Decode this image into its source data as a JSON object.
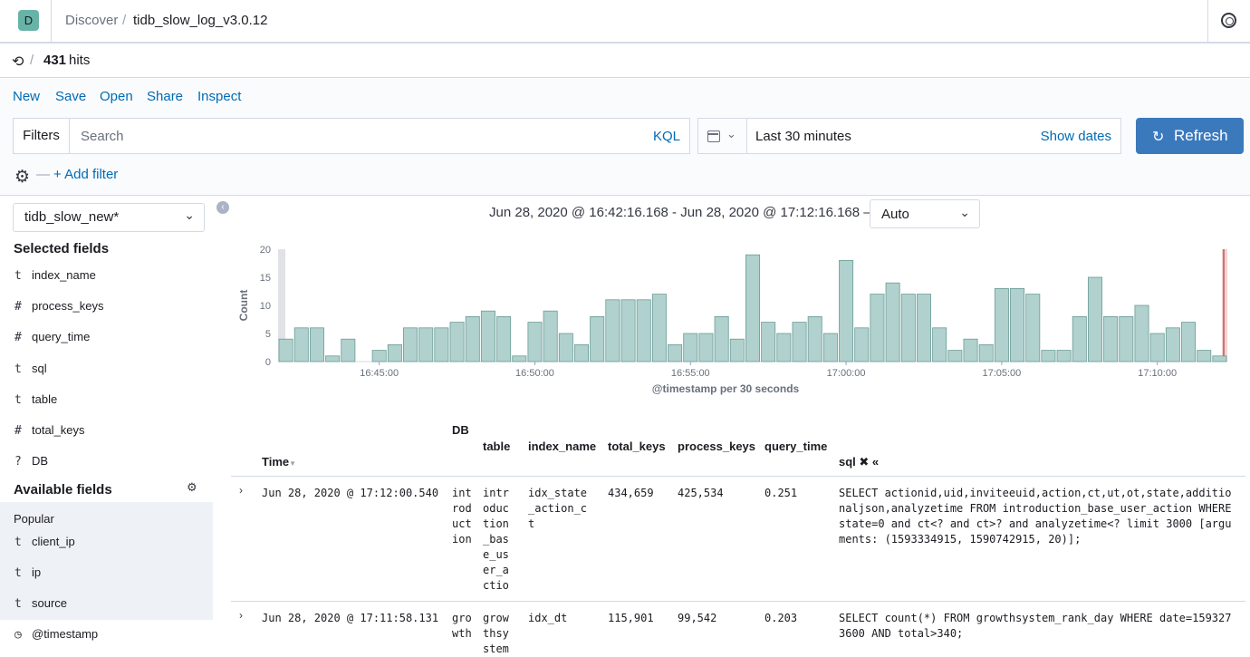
{
  "header": {
    "avatar_letter": "D",
    "breadcrumb_app": "Discover",
    "breadcrumb_sep": "/",
    "breadcrumb_index": "tidb_slow_log_v3.0.12"
  },
  "hits": {
    "sep": "/",
    "count": "431",
    "label": "hits"
  },
  "menu": {
    "new": "New",
    "save": "Save",
    "open": "Open",
    "share": "Share",
    "inspect": "Inspect"
  },
  "query": {
    "filters_label": "Filters",
    "search_placeholder": "Search",
    "kql_label": "KQL",
    "time_label": "Last 30 minutes",
    "show_dates": "Show dates",
    "refresh_label": "Refresh",
    "add_filter": "+ Add filter",
    "dash": "—"
  },
  "sidebar": {
    "index_pattern": "tidb_slow_new*",
    "selected_title": "Selected fields",
    "selected_fields": [
      {
        "type": "t",
        "name": "index_name"
      },
      {
        "type": "#",
        "name": "process_keys"
      },
      {
        "type": "#",
        "name": "query_time"
      },
      {
        "type": "t",
        "name": "sql"
      },
      {
        "type": "t",
        "name": "table"
      },
      {
        "type": "#",
        "name": "total_keys"
      },
      {
        "type": "?",
        "name": "DB"
      }
    ],
    "available_title": "Available fields",
    "popular_label": "Popular",
    "popular_fields": [
      {
        "type": "t",
        "name": "client_ip"
      },
      {
        "type": "t",
        "name": "ip"
      },
      {
        "type": "t",
        "name": "source"
      }
    ],
    "other_fields": [
      {
        "type": "◷",
        "name": "@timestamp"
      }
    ]
  },
  "histogram": {
    "range_label": "Jun 28, 2020 @ 16:42:16.168 - Jun 28, 2020 @ 17:12:16.168 —",
    "interval_value": "Auto"
  },
  "chart_data": {
    "type": "bar",
    "xlabel": "@timestamp per 30 seconds",
    "ylabel": "Count",
    "ylim": [
      0,
      20
    ],
    "yticks": [
      "0",
      "5",
      "10",
      "15",
      "20"
    ],
    "xticks": [
      "16:45:00",
      "16:50:00",
      "16:55:00",
      "17:00:00",
      "17:05:00",
      "17:10:00"
    ],
    "bar_color": "#b0d1cd",
    "values": [
      4,
      6,
      6,
      1,
      4,
      0,
      2,
      3,
      6,
      6,
      6,
      7,
      8,
      9,
      8,
      1,
      7,
      9,
      5,
      3,
      8,
      11,
      11,
      11,
      12,
      3,
      5,
      5,
      8,
      4,
      19,
      7,
      5,
      7,
      8,
      5,
      18,
      6,
      12,
      14,
      12,
      12,
      6,
      2,
      4,
      3,
      13,
      13,
      12,
      2,
      2,
      8,
      15,
      8,
      8,
      10,
      5,
      6,
      7,
      2,
      1
    ],
    "bar_fill": "#b0d1cd",
    "bar_stroke": "#6a9c96"
  },
  "table": {
    "columns": {
      "time": "Time",
      "db": "DB",
      "table": "table",
      "index_name": "index_name",
      "total_keys": "total_keys",
      "process_keys": "process_keys",
      "query_time": "query_time",
      "sql": "sql ✖ «"
    },
    "rows": [
      {
        "time": "Jun 28, 2020 @ 17:12:00.540",
        "db": "introduction",
        "table": "introduction_base_user_actio",
        "index_name": "idx_state_action_ct",
        "total_keys": "434,659",
        "process_keys": "425,534",
        "query_time": "0.251",
        "sql": "SELECT actionid,uid,inviteeuid,action,ct,ut,ot,state,additionaljson,analyzetime FROM introduction_base_user_action WHERE state=0 and ct<? and ct>? and analyzetime<? limit 3000 [arguments: (1593334915, 1590742915, 20)];"
      },
      {
        "time": "Jun 28, 2020 @ 17:11:58.131",
        "db": "growth",
        "table": "growthsystem",
        "index_name": "idx_dt",
        "total_keys": "115,901",
        "process_keys": "99,542",
        "query_time": "0.203",
        "sql": "SELECT count(*) FROM growthsystem_rank_day WHERE date=1593273600 AND total>340;"
      }
    ]
  }
}
